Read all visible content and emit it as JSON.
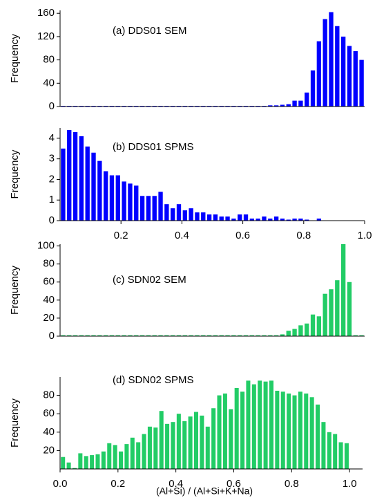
{
  "chart_data": [
    {
      "type": "histogram",
      "annotation": "(a) DDS01 SEM",
      "ylabel": "Frequency",
      "color": "#0000ff",
      "bins": [
        0,
        0.02,
        0.04,
        0.06,
        0.08,
        0.1,
        0.12,
        0.14,
        0.16,
        0.18,
        0.2,
        0.22,
        0.24,
        0.26,
        0.28,
        0.3,
        0.32,
        0.34,
        0.36,
        0.38,
        0.4,
        0.42,
        0.44,
        0.46,
        0.48,
        0.5,
        0.52,
        0.54,
        0.56,
        0.58,
        0.6,
        0.62,
        0.64,
        0.66,
        0.68,
        0.7,
        0.72,
        0.74,
        0.76,
        0.78,
        0.8,
        0.82,
        0.84,
        0.86,
        0.88,
        0.9,
        0.92,
        0.94,
        0.96,
        0.98,
        1.0
      ],
      "values": [
        1,
        1,
        1,
        1,
        1,
        1,
        1,
        1,
        1,
        1,
        1,
        1,
        1,
        1,
        1,
        1,
        1,
        1,
        1,
        1,
        1,
        1,
        1,
        1,
        1,
        1,
        1,
        1,
        1,
        1,
        1,
        1,
        1,
        1,
        2,
        2,
        3,
        4,
        10,
        10,
        24,
        62,
        112,
        150,
        162,
        138,
        120,
        104,
        95,
        80
      ],
      "xlim": [
        0,
        1.0
      ],
      "ylim": [
        0,
        165
      ],
      "yticks": [
        0,
        40,
        80,
        120,
        160
      ]
    },
    {
      "type": "histogram",
      "annotation": "(b) DDS01 SPMS",
      "ylabel": "Frequency",
      "color": "#0000ff",
      "bins": [
        0,
        0.02,
        0.04,
        0.06,
        0.08,
        0.1,
        0.12,
        0.14,
        0.16,
        0.18,
        0.2,
        0.22,
        0.24,
        0.26,
        0.28,
        0.3,
        0.32,
        0.34,
        0.36,
        0.38,
        0.4,
        0.42,
        0.44,
        0.46,
        0.48,
        0.5,
        0.52,
        0.54,
        0.56,
        0.58,
        0.6,
        0.62,
        0.64,
        0.66,
        0.68,
        0.7,
        0.72,
        0.74,
        0.76,
        0.78,
        0.8,
        0.82,
        0.84,
        0.86,
        0.88,
        0.9,
        0.92,
        0.94,
        0.96,
        0.98,
        1.0
      ],
      "values": [
        3.5,
        4.4,
        4.3,
        4.1,
        3.6,
        3.3,
        2.9,
        2.4,
        2.2,
        2.2,
        1.9,
        1.8,
        1.7,
        1.2,
        1.2,
        1.2,
        1.4,
        0.8,
        0.6,
        0.8,
        0.5,
        0.6,
        0.4,
        0.4,
        0.3,
        0.3,
        0.2,
        0.2,
        0.1,
        0.3,
        0.3,
        0.1,
        0.1,
        0.2,
        0.1,
        0.2,
        0.1,
        0.05,
        0.1,
        0.1,
        0.05,
        0,
        0.1,
        0,
        0,
        0,
        0,
        0,
        0,
        0
      ],
      "xlim": [
        0,
        1.0
      ],
      "ylim": [
        0,
        4.5
      ],
      "yticks": [
        0,
        1,
        2,
        3,
        4
      ],
      "xticks": [
        0.2,
        0.4,
        0.6,
        0.8,
        {
          "value": 1.0,
          "label": "1.0"
        }
      ]
    },
    {
      "type": "histogram",
      "annotation": "(c) SDN02 SEM",
      "ylabel": "Frequency",
      "color": "#22cc66",
      "bins": [
        0,
        0.02,
        0.04,
        0.06,
        0.08,
        0.1,
        0.12,
        0.14,
        0.16,
        0.18,
        0.2,
        0.22,
        0.24,
        0.26,
        0.28,
        0.3,
        0.32,
        0.34,
        0.36,
        0.38,
        0.4,
        0.42,
        0.44,
        0.46,
        0.48,
        0.5,
        0.52,
        0.54,
        0.56,
        0.58,
        0.6,
        0.62,
        0.64,
        0.66,
        0.68,
        0.7,
        0.72,
        0.74,
        0.76,
        0.78,
        0.8,
        0.82,
        0.84,
        0.86,
        0.88,
        0.9,
        0.92,
        0.94,
        0.96,
        0.98,
        1.0
      ],
      "values": [
        1,
        1,
        1,
        1,
        1,
        1,
        1,
        1,
        1,
        1,
        1,
        1,
        1,
        1,
        1,
        1,
        1,
        1,
        1,
        1,
        1,
        1,
        1,
        1,
        1,
        1,
        1,
        1,
        1,
        1,
        1,
        1,
        1,
        1,
        1,
        1,
        2,
        6,
        8,
        12,
        14,
        24,
        22,
        47,
        52,
        62,
        102,
        60,
        1,
        1
      ],
      "xlim": [
        0,
        1.0
      ],
      "ylim": [
        0,
        102
      ],
      "yticks": [
        0,
        20,
        40,
        60,
        80,
        100
      ]
    },
    {
      "type": "histogram",
      "annotation": "(d) SDN02 SPMS",
      "ylabel": "Frequency",
      "xlabel": "(Al+Si) / (Al+Si+K+Na)",
      "color": "#22cc66",
      "bins": [
        0,
        0.02,
        0.04,
        0.06,
        0.08,
        0.1,
        0.12,
        0.14,
        0.16,
        0.18,
        0.2,
        0.22,
        0.24,
        0.26,
        0.28,
        0.3,
        0.32,
        0.34,
        0.36,
        0.38,
        0.4,
        0.42,
        0.44,
        0.46,
        0.48,
        0.5,
        0.52,
        0.54,
        0.56,
        0.58,
        0.6,
        0.62,
        0.64,
        0.66,
        0.68,
        0.7,
        0.72,
        0.74,
        0.76,
        0.78,
        0.8,
        0.82,
        0.84,
        0.86,
        0.88,
        0.9,
        0.92,
        0.94,
        0.96,
        0.98,
        1.0
      ],
      "values": [
        13,
        7,
        1,
        17,
        14,
        15,
        16,
        19,
        28,
        26,
        19,
        27,
        34,
        29,
        38,
        46,
        45,
        63,
        49,
        51,
        60,
        52,
        57,
        62,
        58,
        46,
        66,
        80,
        82,
        65,
        88,
        84,
        96,
        92,
        96,
        95,
        96,
        85,
        84,
        82,
        80,
        84,
        82,
        78,
        70,
        51,
        40,
        38,
        29,
        28
      ],
      "xlim": [
        0,
        1.045
      ],
      "ylim": [
        0,
        100
      ],
      "yticks": [
        20,
        40,
        60,
        80
      ],
      "xticks": [
        {
          "value": 0.0,
          "label": "0.0"
        },
        0.2,
        0.4,
        0.6,
        0.8,
        {
          "value": 1.0,
          "label": "1.0"
        }
      ]
    }
  ]
}
